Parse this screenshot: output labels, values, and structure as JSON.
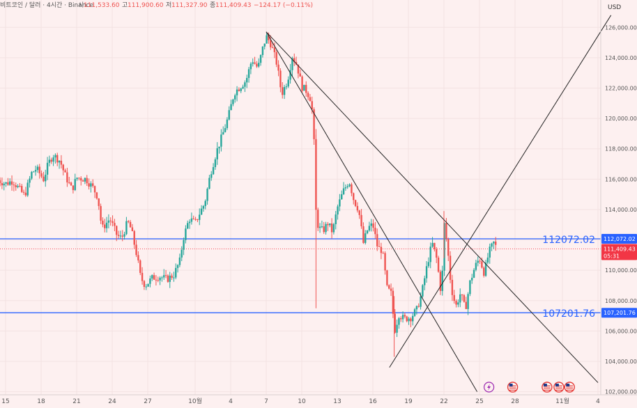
{
  "header": {
    "symbol": "비트코인 / 달러 · 4시간 · Binance",
    "ohlc": [
      {
        "label": "시",
        "value": "111,533.60"
      },
      {
        "label": "고",
        "value": "111,900.60"
      },
      {
        "label": "저",
        "value": "111,327.90"
      },
      {
        "label": "종",
        "value": "111,409.43"
      }
    ],
    "change": "−124.17 (−0.11%)"
  },
  "currency": "USD",
  "countdown": "05:31",
  "colors": {
    "background": "#fdf0f0",
    "up": "#26a69a",
    "down": "#ef5350",
    "hline": "#2962ff",
    "trendline": "#222222",
    "last_price": "#f23645",
    "muted_text": "#7a7a7a"
  },
  "chart_data": {
    "type": "candlestick",
    "title": "비트코인 / 달러 · 4시간 · Binance",
    "ylim": [
      101800,
      127800
    ],
    "y_ticks": [
      102000,
      104000,
      106000,
      108000,
      110000,
      112000,
      114000,
      116000,
      118000,
      120000,
      122000,
      124000,
      126000
    ],
    "y_tick_labels": [
      "102,000.00",
      "104,000.00",
      "106,000.00",
      "108,000.00",
      "110,000.00",
      "112,000.00",
      "114,000.00",
      "116,000.00",
      "118,000.00",
      "120,000.00",
      "122,000.00",
      "124,000.00",
      "126,000.00"
    ],
    "x_ticks": [
      {
        "label": "15",
        "day": 0
      },
      {
        "label": "18",
        "day": 3
      },
      {
        "label": "21",
        "day": 6
      },
      {
        "label": "24",
        "day": 9
      },
      {
        "label": "27",
        "day": 12
      },
      {
        "label": "10월",
        "day": 16
      },
      {
        "label": "4",
        "day": 19
      },
      {
        "label": "7",
        "day": 22
      },
      {
        "label": "10",
        "day": 25
      },
      {
        "label": "13",
        "day": 28
      },
      {
        "label": "16",
        "day": 31
      },
      {
        "label": "19",
        "day": 34
      },
      {
        "label": "22",
        "day": 37
      },
      {
        "label": "25",
        "day": 40
      },
      {
        "label": "28",
        "day": 43
      },
      {
        "label": "11월",
        "day": 47
      },
      {
        "label": "4",
        "day": 50
      }
    ],
    "horizontal_lines": [
      {
        "price": 112072.02,
        "label": "112072.02",
        "axis_label": "112,072.02"
      },
      {
        "price": 107201.76,
        "label": "107201.76",
        "axis_label": "107,201.76"
      }
    ],
    "last_price": {
      "price": 111409.43,
      "label": "111,409.43"
    },
    "trendlines": [
      {
        "from": {
          "day": 22.0,
          "price": 125700
        },
        "to": {
          "day": 50.0,
          "price": 102600
        }
      },
      {
        "from": {
          "day": 22.0,
          "price": 125700
        },
        "to": {
          "day": 39.8,
          "price": 102000
        }
      },
      {
        "from": {
          "day": 32.4,
          "price": 103600
        },
        "to": {
          "day": 51.1,
          "price": 126800
        }
      }
    ],
    "price_path": [
      {
        "day": -0.8,
        "price": 116000
      },
      {
        "day": 0.0,
        "price": 115700
      },
      {
        "day": 0.6,
        "price": 115900
      },
      {
        "day": 1.2,
        "price": 115300
      },
      {
        "day": 1.6,
        "price": 114900
      },
      {
        "day": 2.2,
        "price": 116400
      },
      {
        "day": 2.6,
        "price": 116700
      },
      {
        "day": 3.2,
        "price": 116000
      },
      {
        "day": 3.6,
        "price": 117000
      },
      {
        "day": 4.0,
        "price": 117600
      },
      {
        "day": 4.6,
        "price": 117200
      },
      {
        "day": 5.0,
        "price": 116300
      },
      {
        "day": 5.6,
        "price": 115300
      },
      {
        "day": 6.0,
        "price": 116100
      },
      {
        "day": 6.8,
        "price": 116000
      },
      {
        "day": 7.4,
        "price": 115400
      },
      {
        "day": 7.8,
        "price": 114800
      },
      {
        "day": 8.0,
        "price": 113400
      },
      {
        "day": 8.2,
        "price": 112800
      },
      {
        "day": 8.8,
        "price": 113400
      },
      {
        "day": 9.4,
        "price": 112300
      },
      {
        "day": 9.8,
        "price": 112100
      },
      {
        "day": 10.3,
        "price": 113200
      },
      {
        "day": 10.6,
        "price": 112700
      },
      {
        "day": 11.1,
        "price": 110900
      },
      {
        "day": 11.4,
        "price": 109500
      },
      {
        "day": 11.8,
        "price": 109000
      },
      {
        "day": 12.4,
        "price": 109500
      },
      {
        "day": 13.0,
        "price": 109600
      },
      {
        "day": 13.6,
        "price": 109400
      },
      {
        "day": 14.2,
        "price": 109700
      },
      {
        "day": 14.7,
        "price": 110600
      },
      {
        "day": 15.0,
        "price": 112100
      },
      {
        "day": 15.5,
        "price": 113400
      },
      {
        "day": 16.0,
        "price": 113100
      },
      {
        "day": 16.4,
        "price": 113800
      },
      {
        "day": 16.8,
        "price": 114400
      },
      {
        "day": 17.3,
        "price": 116400
      },
      {
        "day": 17.8,
        "price": 117800
      },
      {
        "day": 18.3,
        "price": 118900
      },
      {
        "day": 18.8,
        "price": 120100
      },
      {
        "day": 19.3,
        "price": 121700
      },
      {
        "day": 19.8,
        "price": 122100
      },
      {
        "day": 20.3,
        "price": 122500
      },
      {
        "day": 20.8,
        "price": 123900
      },
      {
        "day": 21.3,
        "price": 123300
      },
      {
        "day": 21.7,
        "price": 124600
      },
      {
        "day": 22.0,
        "price": 125400
      },
      {
        "day": 22.4,
        "price": 124900
      },
      {
        "day": 22.9,
        "price": 123600
      },
      {
        "day": 23.3,
        "price": 121600
      },
      {
        "day": 23.8,
        "price": 122500
      },
      {
        "day": 24.2,
        "price": 124100
      },
      {
        "day": 24.6,
        "price": 123500
      },
      {
        "day": 25.0,
        "price": 122100
      },
      {
        "day": 25.4,
        "price": 121800
      },
      {
        "day": 25.8,
        "price": 121200
      },
      {
        "day": 26.0,
        "price": 119300
      },
      {
        "day": 26.2,
        "price": 113900
      },
      {
        "day": 26.4,
        "price": 112800
      },
      {
        "day": 26.8,
        "price": 112600
      },
      {
        "day": 27.2,
        "price": 113100
      },
      {
        "day": 27.6,
        "price": 112500
      },
      {
        "day": 28.0,
        "price": 114100
      },
      {
        "day": 28.5,
        "price": 115200
      },
      {
        "day": 29.0,
        "price": 115900
      },
      {
        "day": 29.4,
        "price": 114600
      },
      {
        "day": 29.8,
        "price": 114000
      },
      {
        "day": 30.2,
        "price": 111800
      },
      {
        "day": 30.6,
        "price": 112800
      },
      {
        "day": 31.0,
        "price": 113000
      },
      {
        "day": 31.4,
        "price": 111500
      },
      {
        "day": 31.8,
        "price": 111300
      },
      {
        "day": 32.2,
        "price": 108800
      },
      {
        "day": 32.6,
        "price": 108400
      },
      {
        "day": 32.8,
        "price": 105900
      },
      {
        "day": 33.2,
        "price": 107100
      },
      {
        "day": 33.6,
        "price": 106800
      },
      {
        "day": 34.2,
        "price": 106900
      },
      {
        "day": 34.7,
        "price": 107400
      },
      {
        "day": 35.1,
        "price": 108400
      },
      {
        "day": 35.6,
        "price": 110400
      },
      {
        "day": 36.0,
        "price": 111800
      },
      {
        "day": 36.4,
        "price": 110700
      },
      {
        "day": 36.8,
        "price": 108200
      },
      {
        "day": 37.0,
        "price": 113200
      },
      {
        "day": 37.3,
        "price": 111500
      },
      {
        "day": 37.6,
        "price": 108900
      },
      {
        "day": 38.0,
        "price": 107600
      },
      {
        "day": 38.4,
        "price": 108500
      },
      {
        "day": 38.8,
        "price": 107400
      },
      {
        "day": 39.2,
        "price": 109200
      },
      {
        "day": 39.6,
        "price": 110200
      },
      {
        "day": 40.0,
        "price": 110800
      },
      {
        "day": 40.4,
        "price": 109800
      },
      {
        "day": 40.8,
        "price": 111200
      },
      {
        "day": 41.2,
        "price": 111800
      },
      {
        "day": 41.5,
        "price": 111400
      }
    ],
    "spikes": [
      {
        "day": 26.2,
        "high": 119300,
        "low": 107500
      },
      {
        "day": 32.8,
        "high": 108300,
        "low": 104300
      },
      {
        "day": 37.0,
        "high": 113900,
        "low": 110800
      }
    ],
    "event_markers": [
      {
        "day": 40.8,
        "icon": "lightning-icon"
      },
      {
        "day": 42.8,
        "icon": "us-flag-icon"
      },
      {
        "day": 45.7,
        "icon": "us-flag-icon"
      },
      {
        "day": 46.7,
        "icon": "us-flag-icon"
      },
      {
        "day": 47.6,
        "icon": "us-flag-icon"
      }
    ]
  }
}
